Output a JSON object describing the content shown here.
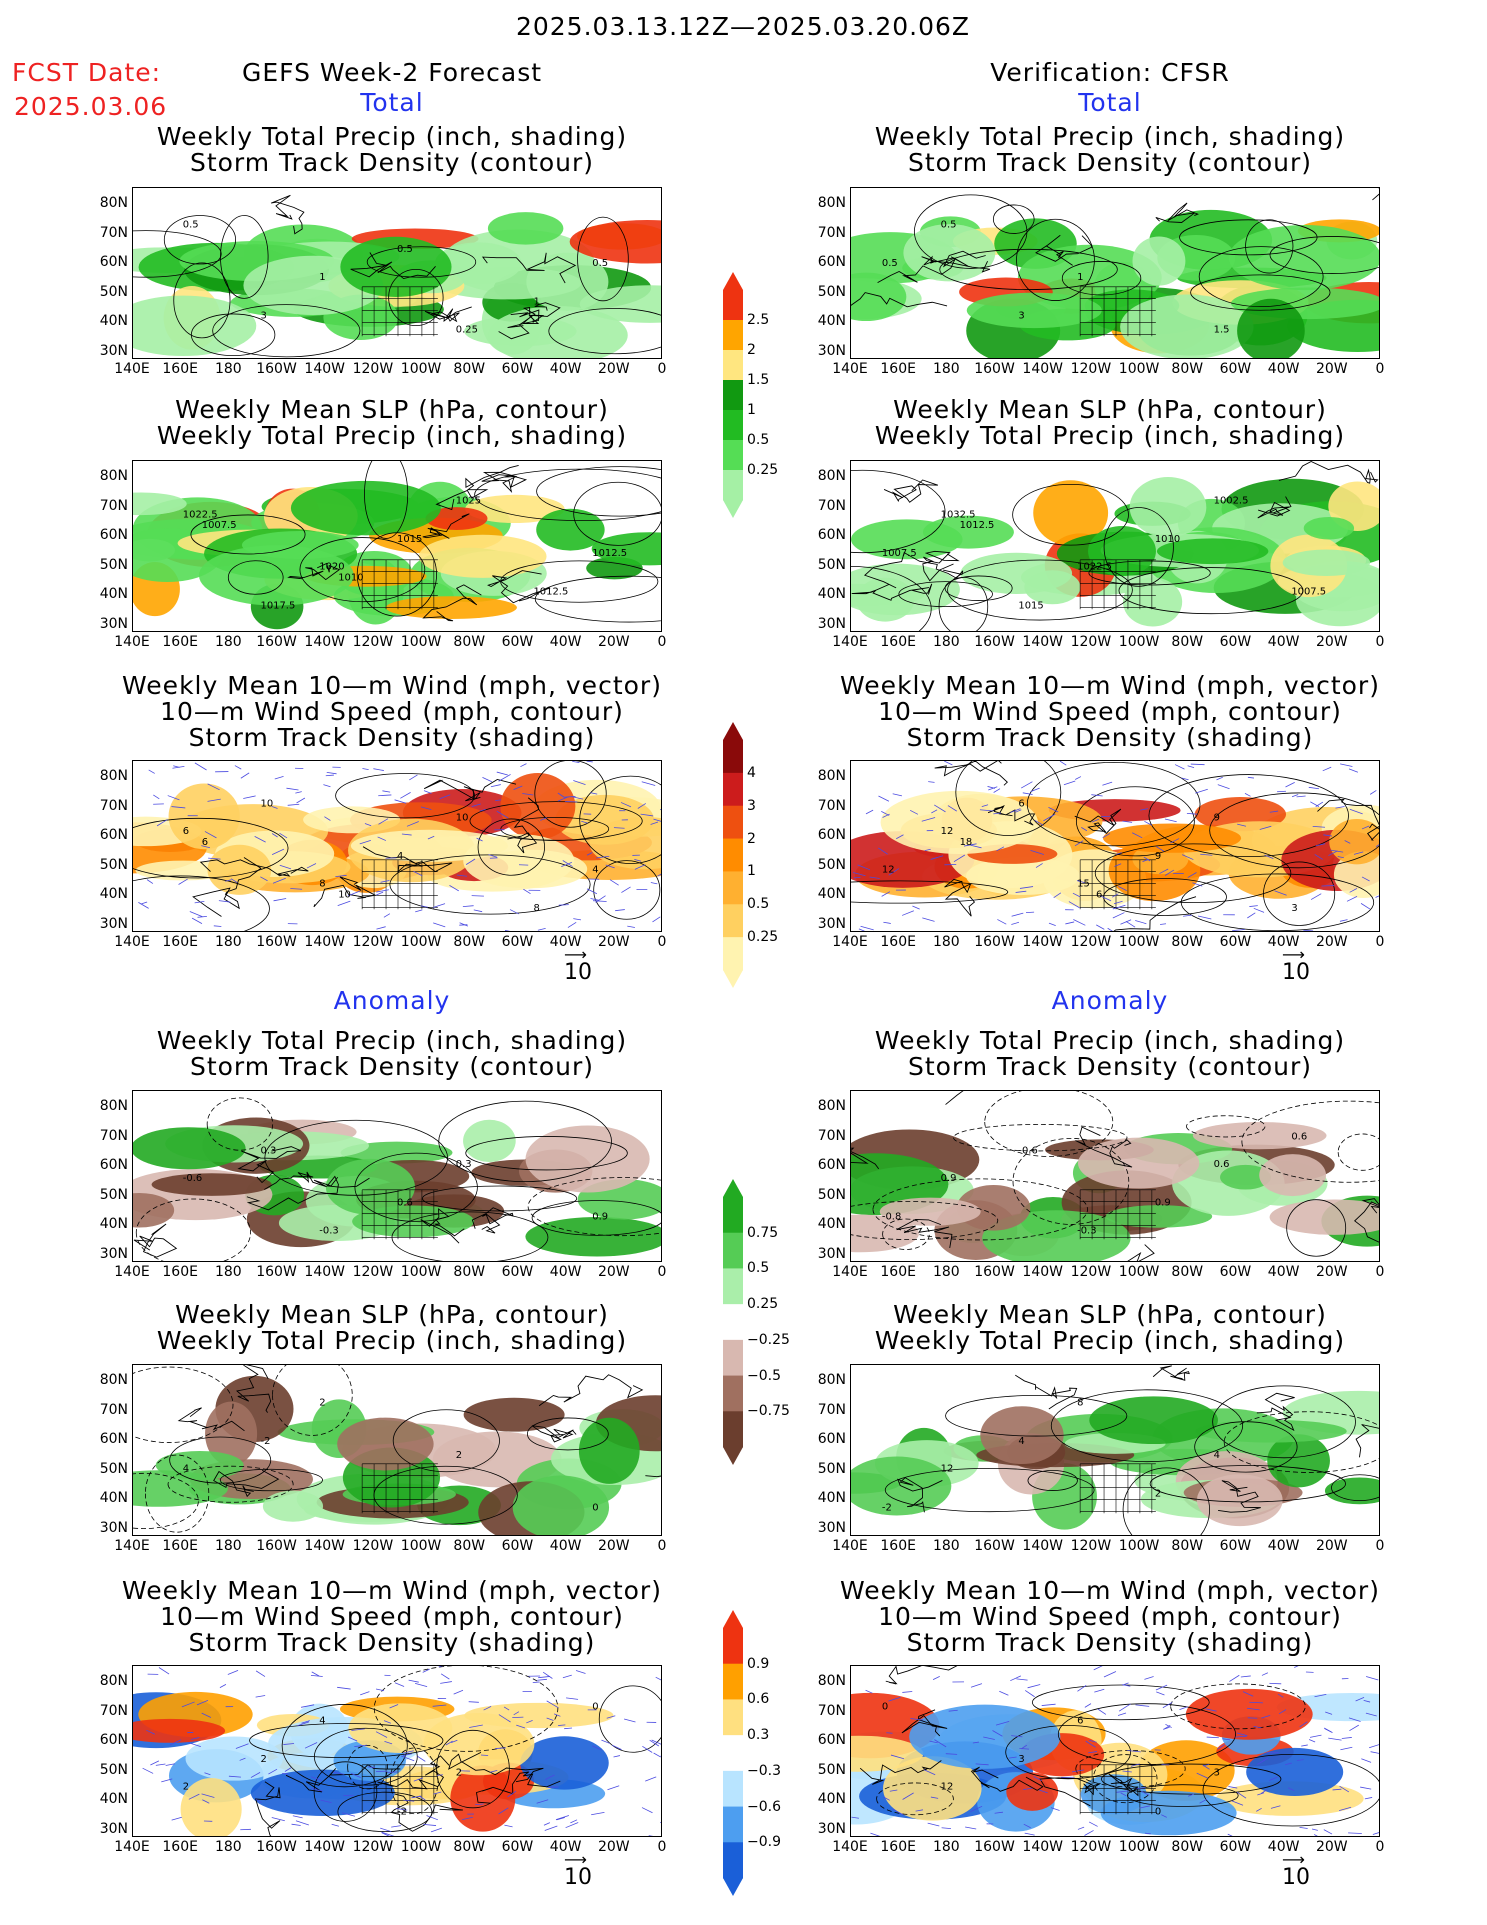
{
  "header": {
    "date_range": "2025.03.13.12Z—2025.03.20.06Z",
    "fcst_label": "FCST Date:",
    "fcst_date": "2025.03.06",
    "left_title": "GEFS Week-2 Forecast",
    "right_title": "Verification: CFSR"
  },
  "sections": {
    "total": "Total",
    "anomaly": "Anomaly"
  },
  "panel_titles": {
    "precip_track": [
      "Weekly Total Precip (inch, shading)",
      "Storm Track Density (contour)"
    ],
    "slp_precip": [
      "Weekly Mean SLP (hPa, contour)",
      "Weekly Total Precip (inch, shading)"
    ],
    "wind_track": [
      "Weekly Mean 10—m Wind (mph, vector)",
      "10—m Wind Speed (mph, contour)",
      "Storm Track Density (shading)"
    ]
  },
  "axes": {
    "lat": [
      "80N",
      "70N",
      "60N",
      "50N",
      "40N",
      "30N"
    ],
    "lon": [
      "140E",
      "160E",
      "180",
      "160W",
      "140W",
      "120W",
      "100W",
      "80W",
      "60W",
      "40W",
      "20W",
      "0"
    ]
  },
  "vector_ref": "10",
  "colorbars": {
    "precip_total": [
      "0.25",
      "0.5",
      "1",
      "1.5",
      "2",
      "2.5"
    ],
    "track_total": [
      "0.25",
      "0.5",
      "1",
      "2",
      "3",
      "4"
    ],
    "precip_anom": [
      "0.75",
      "0.5",
      "0.25",
      "−0.25",
      "−0.5",
      "−0.75"
    ],
    "track_anom": [
      "0.9",
      "0.6",
      "0.3",
      "−0.3",
      "−0.6",
      "−0.9"
    ]
  },
  "colors": {
    "precip_total": [
      "#a5f0a5",
      "#55dd55",
      "#22bb22",
      "#119911",
      "#ffe680",
      "#ffa500",
      "#ee3311"
    ],
    "track_total": [
      "#fff3b0",
      "#ffd060",
      "#ffb030",
      "#ff8c00",
      "#ee5010",
      "#cc1c1c",
      "#8a0a0a"
    ],
    "precip_anom_pos": [
      "#22aa22",
      "#55cc55",
      "#aaeeaa"
    ],
    "precip_anom_neg": [
      "#d8b8b0",
      "#a07060",
      "#6b3e2e"
    ],
    "track_anom_pos": [
      "#ee3311",
      "#ffa000",
      "#ffe080"
    ],
    "track_anom_neg": [
      "#b8e4ff",
      "#4d9ef0",
      "#1a5fd8"
    ]
  },
  "panel_labels": {
    "L1": [
      "0.5",
      "1",
      "0.25",
      "0.5",
      "3",
      "0.5",
      "1"
    ],
    "R1": [
      "0.5",
      "1",
      "1.5",
      "0.5",
      "3"
    ],
    "L2": [
      "1022.5",
      "1020",
      "1025",
      "1012.5",
      "1017.5",
      "1015",
      "1012.5",
      "1007.5",
      "1010"
    ],
    "R2": [
      "1032.5",
      "1022.5",
      "1002.5",
      "1007.5",
      "1015",
      "1010",
      "1007.5",
      "1012.5"
    ],
    "L3": [
      "6",
      "8",
      "10",
      "4",
      "10",
      "4",
      "8",
      "6",
      "10"
    ],
    "R3": [
      "12",
      "15",
      "9",
      "12",
      "6",
      "9",
      "3",
      "18",
      "6"
    ],
    "L4": [
      "-0.6",
      "-0.3",
      "0.3",
      "0.9",
      "0.3",
      "0.6"
    ],
    "R4": [
      "0.9",
      "-0.3",
      "0.6",
      "-0.8",
      "-0.6",
      "0.9",
      "0.6"
    ],
    "L5": [
      "4",
      "2",
      "2",
      "0",
      "-2"
    ],
    "R5": [
      "12",
      "8",
      "4",
      "-2",
      "4",
      "2"
    ],
    "L6": [
      "2",
      "4",
      "2",
      "0",
      "2",
      "-2"
    ],
    "R6": [
      "12",
      "6",
      "3",
      "0",
      "3",
      "0"
    ]
  }
}
